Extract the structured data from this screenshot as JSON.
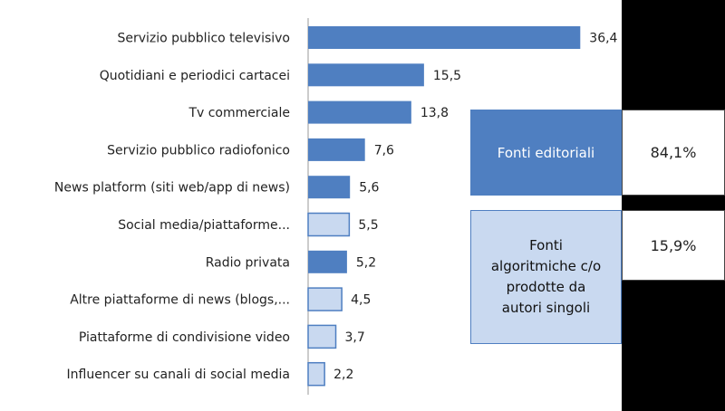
{
  "chart_data": {
    "type": "bar",
    "orientation": "horizontal",
    "categories": [
      "Servizio pubblico televisivo",
      "Quotidiani e periodici cartacei",
      "Tv commerciale",
      "Servizio pubblico radiofonico",
      "News platform (siti web/app di news)",
      "Social media/piattaforme...",
      "Radio privata",
      "Altre piattaforme di news (blogs,...",
      "Piattaforme di condivisione video",
      "Influencer su canali di social media"
    ],
    "values": [
      36.4,
      15.5,
      13.8,
      7.6,
      5.6,
      5.5,
      5.2,
      4.5,
      3.7,
      2.2
    ],
    "value_labels": [
      "36,4",
      "15,5",
      "13,8",
      "7,6",
      "5,6",
      "5,5",
      "5,2",
      "4,5",
      "3,7",
      "2,2"
    ],
    "groups": [
      "editoriali",
      "editoriali",
      "editoriali",
      "editoriali",
      "editoriali",
      "algoritmiche",
      "editoriali",
      "algoritmiche",
      "algoritmiche",
      "algoritmiche"
    ],
    "xlim": [
      0,
      40
    ],
    "grid": false,
    "title": "",
    "xlabel": "",
    "ylabel": ""
  },
  "colors": {
    "editoriali": "#4f7fc1",
    "algoritmiche": "#c9d9f0",
    "algoritmiche_border": "#4f7fc1",
    "background_right": "#000000"
  },
  "legend_boxes": {
    "editorial": {
      "label": "Fonti editoriali",
      "pct": "84,1%"
    },
    "algorithmic": {
      "label": "Fonti algoritmiche c/o prodotte da autori singoli",
      "pct": "15,9%"
    }
  }
}
